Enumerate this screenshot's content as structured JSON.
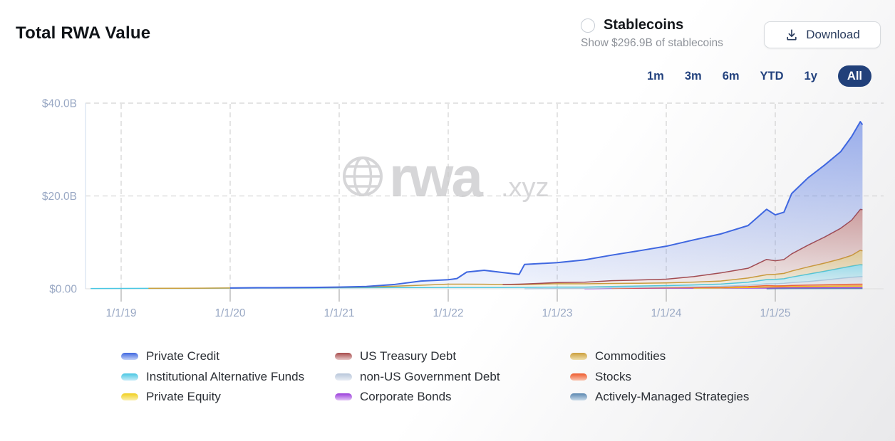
{
  "page": {
    "title": "Total RWA Value"
  },
  "stablecoins": {
    "label": "Stablecoins",
    "sublabel": "Show $296.9B of stablecoins",
    "checked": false
  },
  "download": {
    "label": "Download"
  },
  "range_buttons": {
    "options": [
      "1m",
      "3m",
      "6m",
      "YTD",
      "1y",
      "All"
    ],
    "selected": "All"
  },
  "watermark": {
    "text": "rwa",
    "suffix": ".xyz"
  },
  "colors": {
    "accent_navy": "#21407a",
    "axis_label": "#99a8c4",
    "grid": "#c9c9c9",
    "watermark": "#d6d6d8"
  },
  "legend": {
    "columns": [
      [
        "Private Credit",
        "Institutional Alternative Funds",
        "Private Equity"
      ],
      [
        "US Treasury Debt",
        "non-US Government Debt",
        "Corporate Bonds"
      ],
      [
        "Commodities",
        "Stocks",
        "Actively-Managed Strategies"
      ]
    ]
  },
  "chart_data": {
    "type": "area",
    "stacked": true,
    "title": "Total RWA Value",
    "xlabel": "",
    "ylabel": "",
    "ylim": [
      0,
      40
    ],
    "grid": "dashed",
    "legend_position": "bottom",
    "x_unit": "decimal-year",
    "y_ticks": [
      {
        "value": 0,
        "label": "$0.00"
      },
      {
        "value": 20,
        "label": "$20.0B"
      },
      {
        "value": 40,
        "label": "$40.0B"
      }
    ],
    "x_ticks": [
      {
        "value": 2019,
        "label": "1/1/19"
      },
      {
        "value": 2020,
        "label": "1/1/20"
      },
      {
        "value": 2021,
        "label": "1/1/21"
      },
      {
        "value": 2022,
        "label": "1/1/22"
      },
      {
        "value": 2023,
        "label": "1/1/23"
      },
      {
        "value": 2024,
        "label": "1/1/24"
      },
      {
        "value": 2025,
        "label": "1/1/25"
      }
    ],
    "x": [
      2018.72,
      2019.0,
      2019.25,
      2019.5,
      2019.75,
      2020.0,
      2020.25,
      2020.5,
      2020.75,
      2021.0,
      2021.25,
      2021.5,
      2021.75,
      2022.0,
      2022.08,
      2022.17,
      2022.33,
      2022.5,
      2022.65,
      2022.7,
      2023.0,
      2023.25,
      2023.5,
      2023.75,
      2024.0,
      2024.25,
      2024.5,
      2024.75,
      2024.92,
      2025.0,
      2025.08,
      2025.15,
      2025.3,
      2025.45,
      2025.6,
      2025.7,
      2025.78,
      2025.8
    ],
    "units": "USD billions",
    "series": [
      {
        "name": "Actively-Managed Strategies",
        "color": "#5b87b0",
        "color_light": "#c9dae9",
        "values": [
          0,
          0,
          0,
          0,
          0,
          0,
          0,
          0,
          0,
          0,
          0,
          0,
          0,
          0,
          0,
          0,
          0,
          0,
          0,
          0,
          0,
          0,
          0,
          0,
          0,
          0,
          0,
          0,
          0,
          0.03,
          0.04,
          0.05,
          0.05,
          0.05,
          0.05,
          0.05,
          0.05,
          0.05
        ]
      },
      {
        "name": "Corporate Bonds",
        "color": "#9a3bdb",
        "color_light": "#e3c5f6",
        "values": [
          0,
          0,
          0,
          0,
          0,
          0,
          0,
          0,
          0,
          0,
          0,
          0,
          0,
          0,
          0,
          0,
          0,
          0,
          0,
          0,
          0,
          0,
          0.1,
          0.12,
          0.15,
          0.15,
          0.15,
          0.17,
          0.18,
          0.18,
          0.2,
          0.2,
          0.2,
          0.22,
          0.24,
          0.25,
          0.25,
          0.25
        ]
      },
      {
        "name": "Private Equity",
        "color": "#f0cf1f",
        "color_light": "#faf0ae",
        "values": [
          0,
          0,
          0,
          0,
          0,
          0,
          0,
          0,
          0,
          0,
          0,
          0,
          0,
          0,
          0,
          0,
          0,
          0,
          0,
          0,
          0,
          0,
          0,
          0,
          0,
          0,
          0.05,
          0.1,
          0.2,
          0.2,
          0.2,
          0.22,
          0.25,
          0.28,
          0.3,
          0.3,
          0.3,
          0.3
        ]
      },
      {
        "name": "Stocks",
        "color": "#ee5a2d",
        "color_light": "#f9c3ae",
        "values": [
          0,
          0,
          0,
          0,
          0,
          0,
          0,
          0,
          0,
          0,
          0,
          0,
          0,
          0,
          0,
          0,
          0,
          0,
          0,
          0,
          0,
          0,
          0,
          0.05,
          0.07,
          0.1,
          0.12,
          0.2,
          0.3,
          0.22,
          0.22,
          0.25,
          0.3,
          0.32,
          0.35,
          0.38,
          0.4,
          0.4
        ]
      },
      {
        "name": "non-US Government Debt",
        "color": "#b7c6da",
        "color_light": "#e9eef5",
        "values": [
          0,
          0,
          0,
          0,
          0,
          0,
          0,
          0,
          0,
          0,
          0,
          0,
          0,
          0,
          0,
          0,
          0,
          0,
          0,
          0,
          0.05,
          0.07,
          0.1,
          0.12,
          0.15,
          0.18,
          0.2,
          0.3,
          0.4,
          0.45,
          0.5,
          0.6,
          0.75,
          1.0,
          1.3,
          1.5,
          1.6,
          1.6
        ]
      },
      {
        "name": "Institutional Alternative Funds",
        "color": "#49c7e3",
        "color_light": "#c6ecf8",
        "values": [
          0.05,
          0.07,
          0.09,
          0.1,
          0.12,
          0.15,
          0.17,
          0.18,
          0.2,
          0.23,
          0.25,
          0.26,
          0.27,
          0.28,
          0.28,
          0.28,
          0.28,
          0.29,
          0.3,
          0.3,
          0.32,
          0.3,
          0.3,
          0.3,
          0.32,
          0.4,
          0.5,
          0.65,
          0.9,
          0.95,
          1.0,
          1.2,
          1.6,
          1.9,
          2.2,
          2.4,
          2.6,
          2.55
        ]
      },
      {
        "name": "Commodities",
        "color": "#cb9f3c",
        "color_light": "#efdfad",
        "values": [
          0,
          0,
          0,
          0.01,
          0.02,
          0.03,
          0.04,
          0.05,
          0.06,
          0.08,
          0.15,
          0.3,
          0.5,
          0.72,
          0.72,
          0.72,
          0.7,
          0.62,
          0.6,
          0.62,
          0.72,
          0.7,
          0.65,
          0.6,
          0.58,
          0.6,
          0.65,
          0.9,
          1.05,
          1.1,
          1.15,
          1.3,
          1.55,
          1.75,
          2.0,
          2.3,
          3.1,
          3.0
        ]
      },
      {
        "name": "US Treasury Debt",
        "color": "#a74a4a",
        "color_light": "#e7c9c9",
        "values": [
          0,
          0,
          0,
          0,
          0,
          0,
          0,
          0,
          0,
          0,
          0,
          0,
          0,
          0,
          0,
          0,
          0,
          0,
          0.1,
          0.12,
          0.25,
          0.35,
          0.6,
          0.7,
          0.8,
          1.2,
          1.75,
          2.1,
          3.3,
          2.9,
          3.0,
          3.7,
          4.7,
          5.6,
          6.6,
          7.6,
          8.8,
          8.9
        ]
      },
      {
        "name": "Private Credit",
        "color": "#3f67e0",
        "color_light": "#c5d3f7",
        "values": [
          0,
          0,
          0,
          0,
          0,
          0,
          0.01,
          0.02,
          0.03,
          0.05,
          0.1,
          0.35,
          0.9,
          0.95,
          1.2,
          2.6,
          3.0,
          2.6,
          2.1,
          4.2,
          4.3,
          4.8,
          5.5,
          6.3,
          7.1,
          7.9,
          8.4,
          9.2,
          10.8,
          9.9,
          10.2,
          13.0,
          14.5,
          15.5,
          16.5,
          18.0,
          18.9,
          18.3
        ]
      }
    ]
  }
}
